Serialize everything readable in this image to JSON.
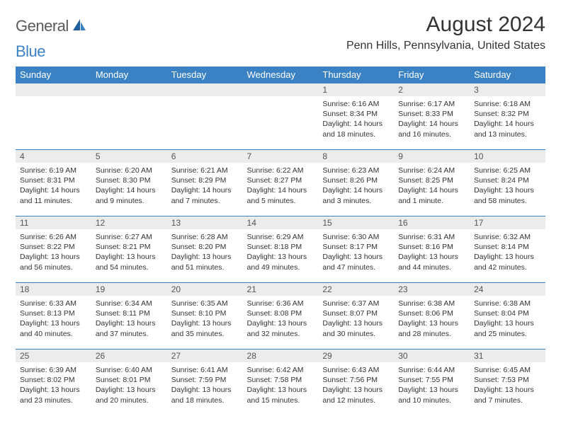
{
  "logo": {
    "text1": "General",
    "text2": "Blue"
  },
  "title": "August 2024",
  "location": "Penn Hills, Pennsylvania, United States",
  "colors": {
    "header_bg": "#3b82c4",
    "header_text": "#ffffff",
    "daynum_bg": "#ececec",
    "daynum_text": "#555555",
    "body_text": "#333333",
    "logo_gray": "#5a5a5a",
    "logo_blue": "#3b82c4",
    "row_border": "#3b82c4"
  },
  "weekdays": [
    "Sunday",
    "Monday",
    "Tuesday",
    "Wednesday",
    "Thursday",
    "Friday",
    "Saturday"
  ],
  "weeks": [
    [
      null,
      null,
      null,
      null,
      {
        "n": "1",
        "sr": "6:16 AM",
        "ss": "8:34 PM",
        "dl": "14 hours and 18 minutes."
      },
      {
        "n": "2",
        "sr": "6:17 AM",
        "ss": "8:33 PM",
        "dl": "14 hours and 16 minutes."
      },
      {
        "n": "3",
        "sr": "6:18 AM",
        "ss": "8:32 PM",
        "dl": "14 hours and 13 minutes."
      }
    ],
    [
      {
        "n": "4",
        "sr": "6:19 AM",
        "ss": "8:31 PM",
        "dl": "14 hours and 11 minutes."
      },
      {
        "n": "5",
        "sr": "6:20 AM",
        "ss": "8:30 PM",
        "dl": "14 hours and 9 minutes."
      },
      {
        "n": "6",
        "sr": "6:21 AM",
        "ss": "8:29 PM",
        "dl": "14 hours and 7 minutes."
      },
      {
        "n": "7",
        "sr": "6:22 AM",
        "ss": "8:27 PM",
        "dl": "14 hours and 5 minutes."
      },
      {
        "n": "8",
        "sr": "6:23 AM",
        "ss": "8:26 PM",
        "dl": "14 hours and 3 minutes."
      },
      {
        "n": "9",
        "sr": "6:24 AM",
        "ss": "8:25 PM",
        "dl": "14 hours and 1 minute."
      },
      {
        "n": "10",
        "sr": "6:25 AM",
        "ss": "8:24 PM",
        "dl": "13 hours and 58 minutes."
      }
    ],
    [
      {
        "n": "11",
        "sr": "6:26 AM",
        "ss": "8:22 PM",
        "dl": "13 hours and 56 minutes."
      },
      {
        "n": "12",
        "sr": "6:27 AM",
        "ss": "8:21 PM",
        "dl": "13 hours and 54 minutes."
      },
      {
        "n": "13",
        "sr": "6:28 AM",
        "ss": "8:20 PM",
        "dl": "13 hours and 51 minutes."
      },
      {
        "n": "14",
        "sr": "6:29 AM",
        "ss": "8:18 PM",
        "dl": "13 hours and 49 minutes."
      },
      {
        "n": "15",
        "sr": "6:30 AM",
        "ss": "8:17 PM",
        "dl": "13 hours and 47 minutes."
      },
      {
        "n": "16",
        "sr": "6:31 AM",
        "ss": "8:16 PM",
        "dl": "13 hours and 44 minutes."
      },
      {
        "n": "17",
        "sr": "6:32 AM",
        "ss": "8:14 PM",
        "dl": "13 hours and 42 minutes."
      }
    ],
    [
      {
        "n": "18",
        "sr": "6:33 AM",
        "ss": "8:13 PM",
        "dl": "13 hours and 40 minutes."
      },
      {
        "n": "19",
        "sr": "6:34 AM",
        "ss": "8:11 PM",
        "dl": "13 hours and 37 minutes."
      },
      {
        "n": "20",
        "sr": "6:35 AM",
        "ss": "8:10 PM",
        "dl": "13 hours and 35 minutes."
      },
      {
        "n": "21",
        "sr": "6:36 AM",
        "ss": "8:08 PM",
        "dl": "13 hours and 32 minutes."
      },
      {
        "n": "22",
        "sr": "6:37 AM",
        "ss": "8:07 PM",
        "dl": "13 hours and 30 minutes."
      },
      {
        "n": "23",
        "sr": "6:38 AM",
        "ss": "8:06 PM",
        "dl": "13 hours and 28 minutes."
      },
      {
        "n": "24",
        "sr": "6:38 AM",
        "ss": "8:04 PM",
        "dl": "13 hours and 25 minutes."
      }
    ],
    [
      {
        "n": "25",
        "sr": "6:39 AM",
        "ss": "8:02 PM",
        "dl": "13 hours and 23 minutes."
      },
      {
        "n": "26",
        "sr": "6:40 AM",
        "ss": "8:01 PM",
        "dl": "13 hours and 20 minutes."
      },
      {
        "n": "27",
        "sr": "6:41 AM",
        "ss": "7:59 PM",
        "dl": "13 hours and 18 minutes."
      },
      {
        "n": "28",
        "sr": "6:42 AM",
        "ss": "7:58 PM",
        "dl": "13 hours and 15 minutes."
      },
      {
        "n": "29",
        "sr": "6:43 AM",
        "ss": "7:56 PM",
        "dl": "13 hours and 12 minutes."
      },
      {
        "n": "30",
        "sr": "6:44 AM",
        "ss": "7:55 PM",
        "dl": "13 hours and 10 minutes."
      },
      {
        "n": "31",
        "sr": "6:45 AM",
        "ss": "7:53 PM",
        "dl": "13 hours and 7 minutes."
      }
    ]
  ],
  "labels": {
    "sunrise": "Sunrise:",
    "sunset": "Sunset:",
    "daylight": "Daylight:"
  }
}
